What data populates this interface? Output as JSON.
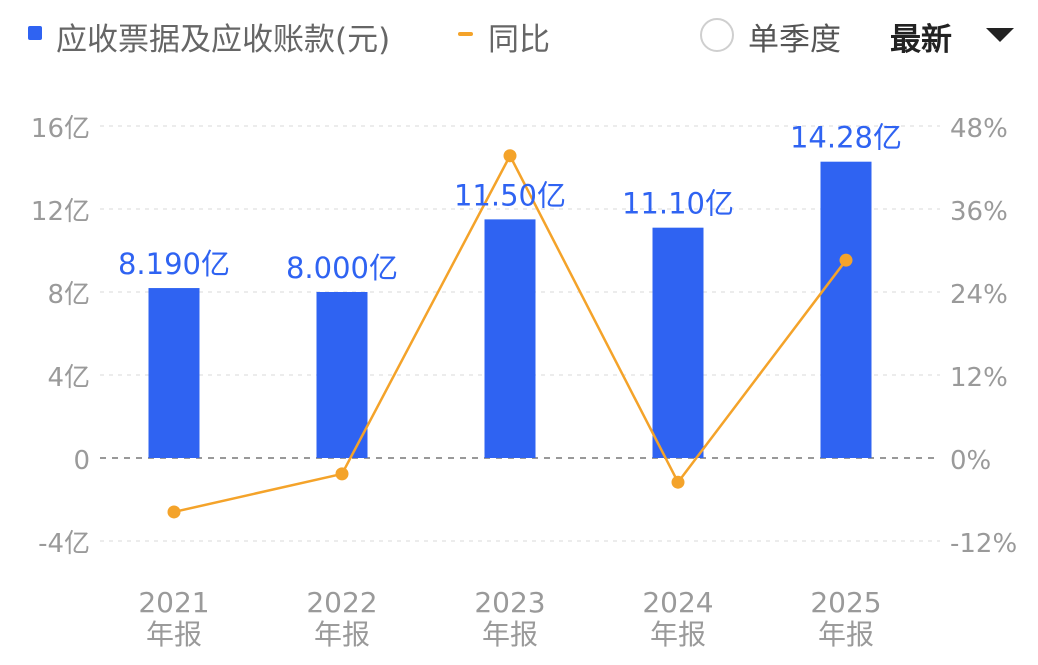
{
  "header": {
    "legend_bar_label": "应收票据及应收账款(元)",
    "legend_line_label": "同比",
    "toggle_label": "单季度",
    "period_select": "最新"
  },
  "colors": {
    "bar": "#2f63f2",
    "line": "#f4a32a",
    "value_label": "#2f63f2",
    "axis_text": "#9a9a9a",
    "grid": "#e6e6e6",
    "zero_line": "#999999"
  },
  "chart_data": {
    "type": "bar",
    "categories": [
      [
        "2021",
        "年报"
      ],
      [
        "2022",
        "年报"
      ],
      [
        "2023",
        "年报"
      ],
      [
        "2024",
        "年报"
      ],
      [
        "2025",
        "年报"
      ]
    ],
    "series": [
      {
        "name": "应收票据及应收账款(元)",
        "type": "bar",
        "axis": "left",
        "values": [
          8.19,
          8.0,
          11.5,
          11.1,
          14.28
        ],
        "unit": "亿",
        "labels": [
          "8.190亿",
          "8.000亿",
          "11.50亿",
          "11.10亿",
          "14.28亿"
        ]
      },
      {
        "name": "同比",
        "type": "line",
        "axis": "right",
        "values": [
          -7.8,
          -2.3,
          43.7,
          -3.5,
          28.6
        ],
        "unit": "%"
      }
    ],
    "y_left": {
      "ticks": [
        "16亿",
        "12亿",
        "8亿",
        "4亿",
        "0",
        "-4亿"
      ],
      "tick_values": [
        16,
        12,
        8,
        4,
        0,
        -4
      ],
      "range": [
        -4,
        16
      ]
    },
    "y_right": {
      "ticks": [
        "48%",
        "36%",
        "24%",
        "12%",
        "0%",
        "-12%"
      ],
      "tick_values": [
        48,
        36,
        24,
        12,
        0,
        -12
      ],
      "range": [
        -12,
        48
      ]
    },
    "grid": true,
    "legend": "top-left"
  }
}
